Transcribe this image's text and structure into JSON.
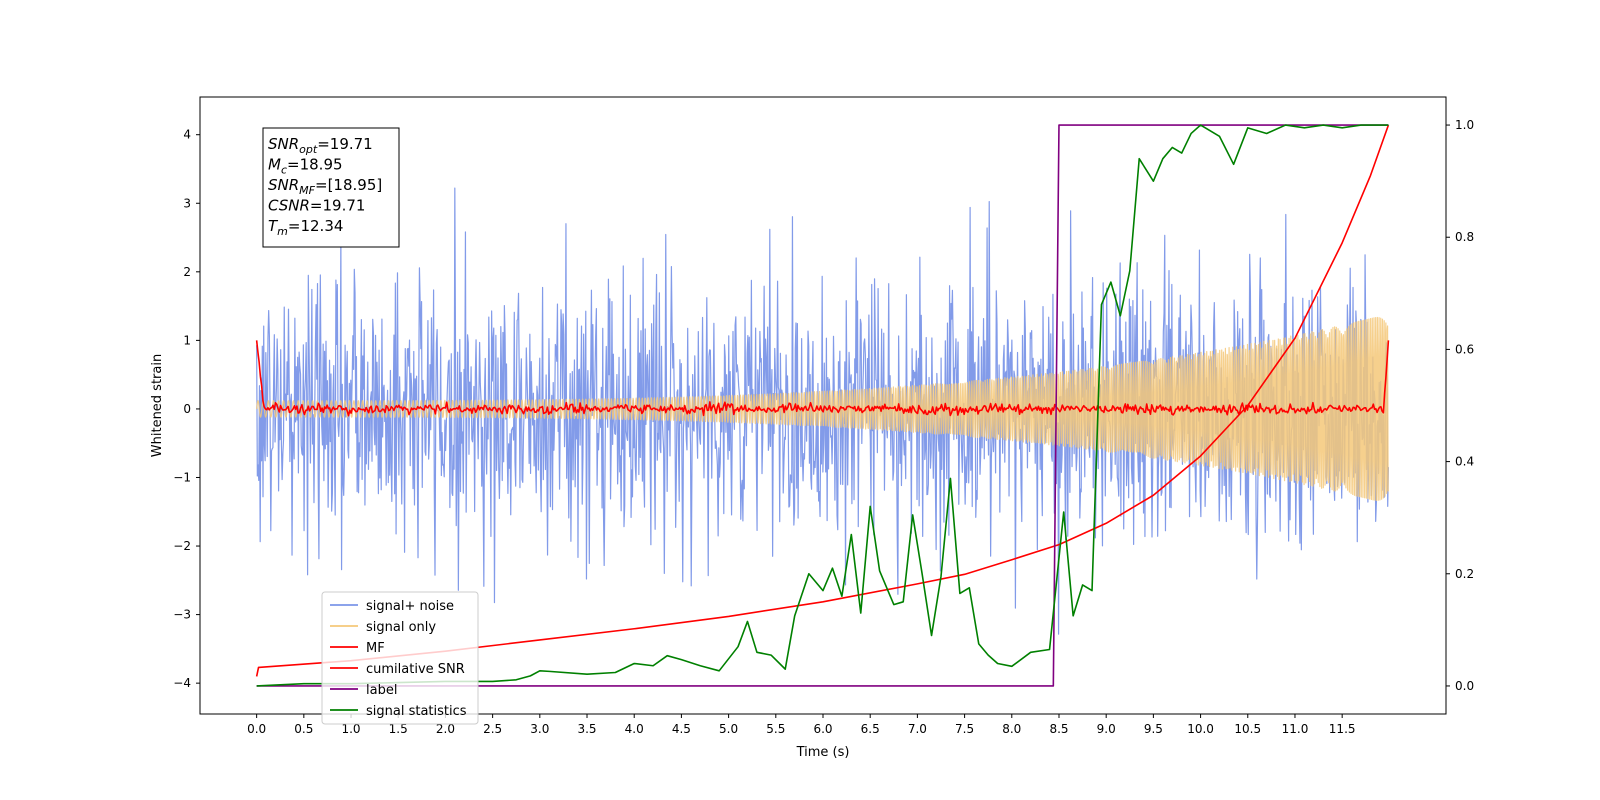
{
  "chart_data": {
    "type": "line",
    "title": "",
    "xlabel": "Time (s)",
    "ylabel": "Whitened strain",
    "ylabel_right": "",
    "xlim": [
      -0.6,
      12.6
    ],
    "ylim": [
      -4.45,
      4.55
    ],
    "ylim_right": [
      -0.05,
      1.05
    ],
    "x_ticks": [
      0.0,
      0.5,
      1.0,
      1.5,
      2.0,
      2.5,
      3.0,
      3.5,
      4.0,
      4.5,
      5.0,
      5.5,
      6.0,
      6.5,
      7.0,
      7.5,
      8.0,
      8.5,
      9.0,
      9.5,
      10.0,
      10.5,
      11.0,
      11.5
    ],
    "x_tick_labels": [
      "0.0",
      "0.5",
      "1.0",
      "1.5",
      "2.0",
      "2.5",
      "3.0",
      "3.5",
      "4.0",
      "4.5",
      "5.0",
      "5.5",
      "6.0",
      "6.5",
      "7.0",
      "7.5",
      "8.0",
      "8.5",
      "9.0",
      "9.5",
      "10.0",
      "10.5",
      "11.0",
      "11.5"
    ],
    "y_ticks": [
      -4,
      -3,
      -2,
      -1,
      0,
      1,
      2,
      3,
      4
    ],
    "y_tick_labels": [
      "−4",
      "−3",
      "−2",
      "−1",
      "0",
      "1",
      "2",
      "3",
      "4"
    ],
    "y_ticks_right": [
      0.0,
      0.2,
      0.4,
      0.6,
      0.8,
      1.0
    ],
    "y_tick_labels_right": [
      "0.0",
      "0.2",
      "0.4",
      "0.6",
      "0.8",
      "1.0"
    ],
    "grid": false,
    "legend_position": "lower-left",
    "annotation": {
      "lines": [
        {
          "base": "SNR",
          "sub": "opt",
          "rest": "=19.71"
        },
        {
          "base": "M",
          "sub": "c",
          "rest": "=18.95"
        },
        {
          "base": "SNR",
          "sub": "MF",
          "rest": "=[18.95]"
        },
        {
          "base": "CSNR",
          "sub": "",
          "rest": "=19.71"
        },
        {
          "base": "T",
          "sub": "m",
          "rest": "=12.34"
        }
      ]
    },
    "series": [
      {
        "name": "signal+ noise",
        "color": "#7b96e8",
        "axis": "left",
        "kind": "noise",
        "sigma": 1.0,
        "duration": 11.99,
        "samples": 1600
      },
      {
        "name": "signal only",
        "color": "#f4c879",
        "axis": "left",
        "kind": "chirp",
        "amplitude_start": 0.12,
        "amplitude_end": 1.38,
        "duration": 11.99
      },
      {
        "name": "MF",
        "color": "#ff0000",
        "axis": "left",
        "kind": "mf",
        "start_value": 1.0,
        "end_value": 1.0,
        "duration": 11.99
      },
      {
        "name": "cumilative SNR",
        "color": "#ff0000",
        "axis": "right",
        "kind": "points",
        "x": [
          0.0,
          0.02,
          1.0,
          2.0,
          3.0,
          4.0,
          5.0,
          6.0,
          7.0,
          7.5,
          8.0,
          8.5,
          9.0,
          9.5,
          10.0,
          10.5,
          11.0,
          11.5,
          11.8,
          11.99
        ],
        "y": [
          0.017,
          0.033,
          0.045,
          0.062,
          0.082,
          0.102,
          0.124,
          0.15,
          0.182,
          0.199,
          0.225,
          0.252,
          0.29,
          0.34,
          0.41,
          0.5,
          0.62,
          0.79,
          0.91,
          1.0
        ]
      },
      {
        "name": "label",
        "color": "#800080",
        "axis": "right",
        "kind": "points",
        "x": [
          0.0,
          8.44,
          8.5,
          11.99
        ],
        "y": [
          0.0,
          0.0,
          1.0,
          1.0
        ]
      },
      {
        "name": "signal statistics",
        "color": "#008000",
        "axis": "right",
        "kind": "points",
        "x": [
          0.0,
          0.5,
          1.0,
          1.5,
          2.0,
          2.5,
          2.75,
          2.9,
          3.0,
          3.1,
          3.5,
          3.8,
          4.0,
          4.2,
          4.35,
          4.5,
          4.7,
          4.9,
          5.1,
          5.2,
          5.3,
          5.45,
          5.6,
          5.7,
          5.85,
          6.0,
          6.1,
          6.2,
          6.3,
          6.4,
          6.5,
          6.6,
          6.75,
          6.85,
          6.95,
          7.05,
          7.15,
          7.25,
          7.35,
          7.45,
          7.55,
          7.65,
          7.75,
          7.85,
          8.0,
          8.2,
          8.4,
          8.55,
          8.65,
          8.75,
          8.85,
          8.95,
          9.05,
          9.15,
          9.25,
          9.35,
          9.5,
          9.6,
          9.7,
          9.8,
          9.9,
          10.0,
          10.2,
          10.35,
          10.5,
          10.7,
          10.9,
          11.1,
          11.3,
          11.5,
          11.7,
          11.99
        ],
        "y": [
          0.0,
          0.004,
          0.004,
          0.006,
          0.008,
          0.008,
          0.011,
          0.018,
          0.027,
          0.026,
          0.021,
          0.024,
          0.04,
          0.036,
          0.054,
          0.047,
          0.036,
          0.027,
          0.07,
          0.115,
          0.06,
          0.055,
          0.03,
          0.125,
          0.2,
          0.17,
          0.21,
          0.16,
          0.27,
          0.13,
          0.32,
          0.205,
          0.145,
          0.15,
          0.305,
          0.2,
          0.09,
          0.195,
          0.37,
          0.165,
          0.175,
          0.075,
          0.055,
          0.04,
          0.035,
          0.06,
          0.065,
          0.31,
          0.125,
          0.18,
          0.17,
          0.68,
          0.72,
          0.66,
          0.74,
          0.94,
          0.9,
          0.94,
          0.96,
          0.95,
          0.985,
          1.0,
          0.98,
          0.93,
          0.995,
          0.985,
          1.0,
          0.995,
          1.0,
          0.995,
          1.0,
          1.0
        ]
      }
    ]
  }
}
